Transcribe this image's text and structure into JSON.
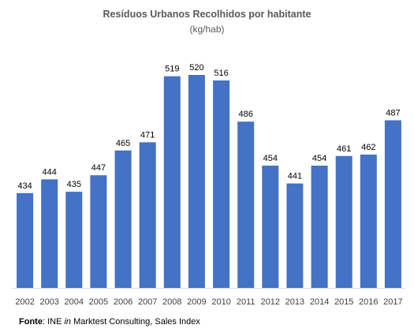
{
  "chart_data": {
    "type": "bar",
    "title": "Resíduos Urbanos Recolhidos por habitante",
    "subtitle": "(kg/hab)",
    "categories": [
      "2002",
      "2003",
      "2004",
      "2005",
      "2006",
      "2007",
      "2008",
      "2009",
      "2010",
      "2011",
      "2012",
      "2013",
      "2014",
      "2015",
      "2016",
      "2017"
    ],
    "values": [
      434,
      444,
      435,
      447,
      465,
      471,
      519,
      520,
      516,
      486,
      454,
      441,
      454,
      461,
      462,
      487
    ],
    "ylim": [
      365,
      532
    ],
    "bar_color": "#4472C4",
    "grid": false,
    "legend": "none"
  },
  "footer": {
    "label": "Fonte",
    "pre": ": INE ",
    "italic": "in",
    "post": " Marktest Consulting, Sales Index"
  }
}
